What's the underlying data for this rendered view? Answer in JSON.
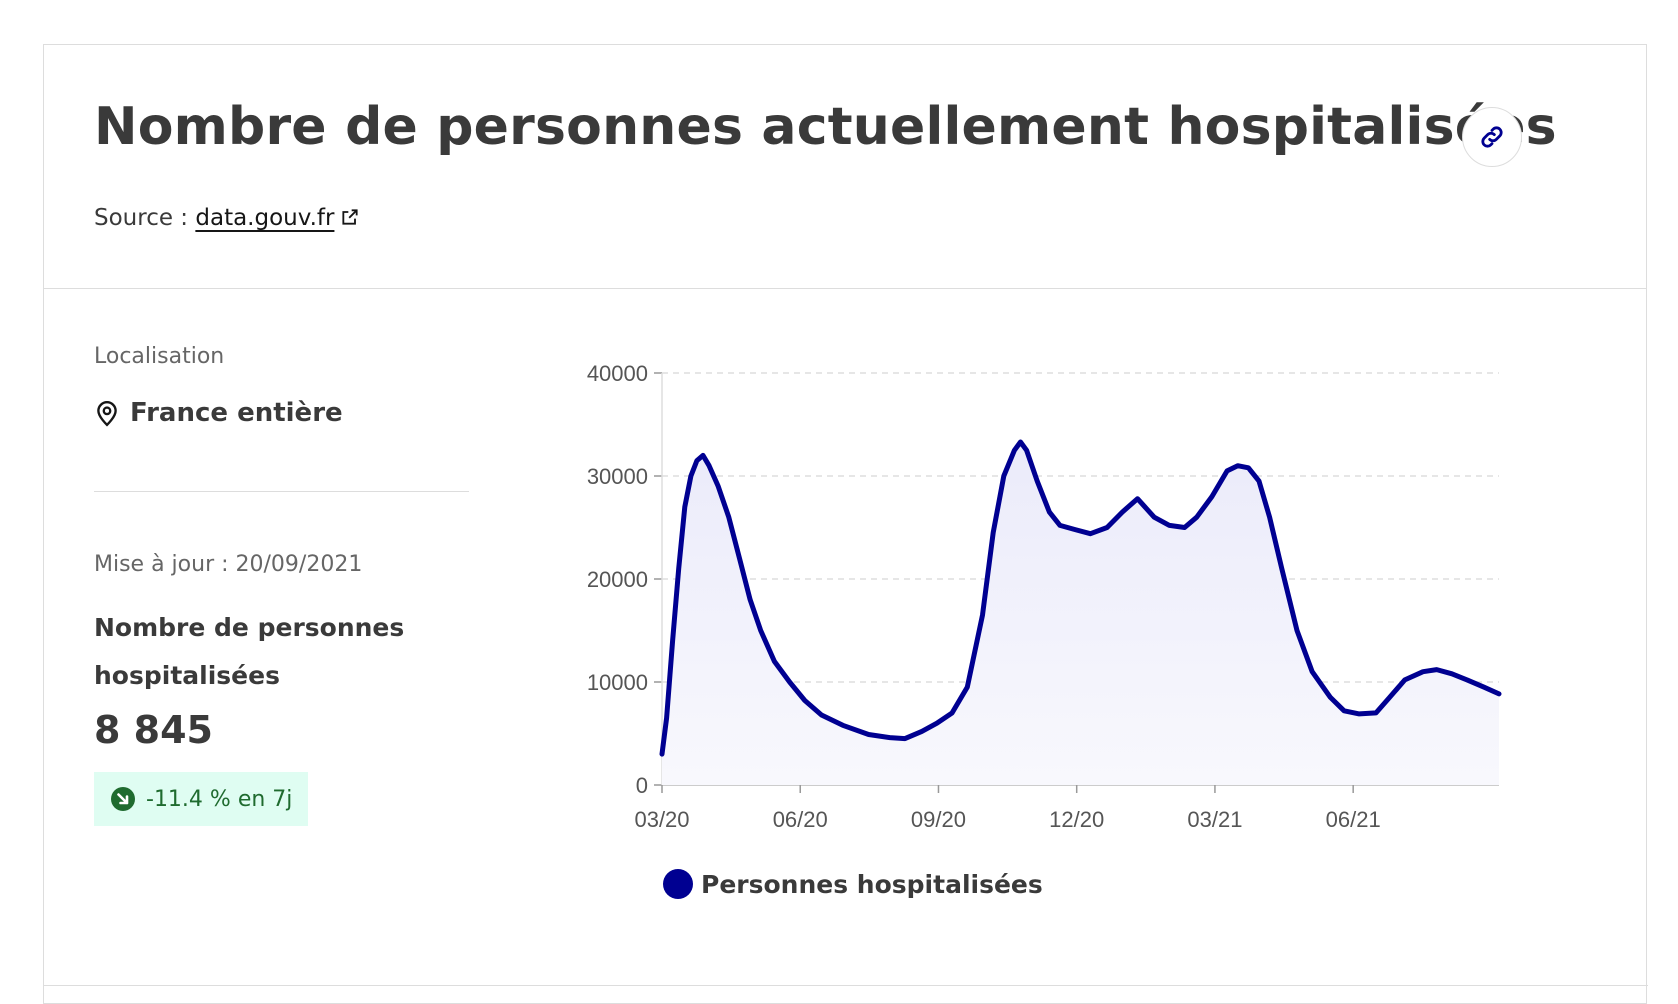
{
  "title": "Nombre de personnes actuellement hospitalisées",
  "source": {
    "label": "Source :",
    "link_text": "data.gouv.fr"
  },
  "location": {
    "label": "Localisation",
    "value": "France entière"
  },
  "update": "Mise à jour : 20/09/2021",
  "metric": {
    "label": "Nombre de personnes hospitalisées",
    "value": "8 845",
    "change": "-11.4 % en 7j"
  },
  "colors": {
    "series": "#000091",
    "area_fill": "#ebebfa",
    "badge_bg": "#dffdf2",
    "badge_text": "#1f6b2f",
    "grid": "#dddddd"
  },
  "icons": [
    "link-icon",
    "external-link-icon",
    "location-pin-icon",
    "trend-down-icon"
  ],
  "chart_data": {
    "type": "area",
    "title": "",
    "xlabel": "",
    "ylabel": "",
    "x_ticks": [
      "03/20",
      "06/20",
      "09/20",
      "12/20",
      "03/21",
      "06/21"
    ],
    "y_ticks": [
      "0",
      "10000",
      "20000",
      "30000",
      "40000"
    ],
    "ylim": [
      0,
      40000
    ],
    "xlim": [
      "2020-03-18",
      "2021-09-20"
    ],
    "grid": true,
    "legend_position": "bottom",
    "series": [
      {
        "name": "Personnes hospitalisées",
        "x": [
          "2020-03-18",
          "2020-03-21",
          "2020-03-25",
          "2020-03-29",
          "2020-04-02",
          "2020-04-06",
          "2020-04-10",
          "2020-04-14",
          "2020-04-18",
          "2020-04-24",
          "2020-05-01",
          "2020-05-08",
          "2020-05-15",
          "2020-05-22",
          "2020-05-31",
          "2020-06-10",
          "2020-06-20",
          "2020-07-01",
          "2020-07-15",
          "2020-08-01",
          "2020-08-15",
          "2020-08-25",
          "2020-09-05",
          "2020-09-15",
          "2020-09-25",
          "2020-10-05",
          "2020-10-15",
          "2020-10-22",
          "2020-10-29",
          "2020-11-05",
          "2020-11-09",
          "2020-11-13",
          "2020-11-20",
          "2020-11-28",
          "2020-12-05",
          "2020-12-15",
          "2020-12-25",
          "2021-01-05",
          "2021-01-15",
          "2021-01-25",
          "2021-02-05",
          "2021-02-15",
          "2021-02-25",
          "2021-03-05",
          "2021-03-15",
          "2021-03-25",
          "2021-04-01",
          "2021-04-08",
          "2021-04-15",
          "2021-04-22",
          "2021-04-30",
          "2021-05-10",
          "2021-05-20",
          "2021-06-01",
          "2021-06-10",
          "2021-06-20",
          "2021-07-01",
          "2021-07-10",
          "2021-07-20",
          "2021-08-01",
          "2021-08-10",
          "2021-08-20",
          "2021-08-30",
          "2021-09-10",
          "2021-09-20"
        ],
        "values": [
          3000,
          6500,
          14000,
          21000,
          27000,
          30000,
          31500,
          32000,
          31000,
          29000,
          26000,
          22000,
          18000,
          15000,
          12000,
          10000,
          8200,
          6800,
          5800,
          4900,
          4600,
          4500,
          5200,
          6000,
          7000,
          9500,
          16500,
          24500,
          30000,
          32500,
          33300,
          32500,
          29500,
          26500,
          25200,
          24800,
          24400,
          25000,
          26500,
          27800,
          26000,
          25200,
          25000,
          26000,
          28000,
          30500,
          31000,
          30800,
          29500,
          26000,
          21000,
          15000,
          11000,
          8500,
          7200,
          6900,
          7000,
          8500,
          10200,
          11000,
          11200,
          10800,
          10200,
          9500,
          8845
        ]
      }
    ]
  }
}
